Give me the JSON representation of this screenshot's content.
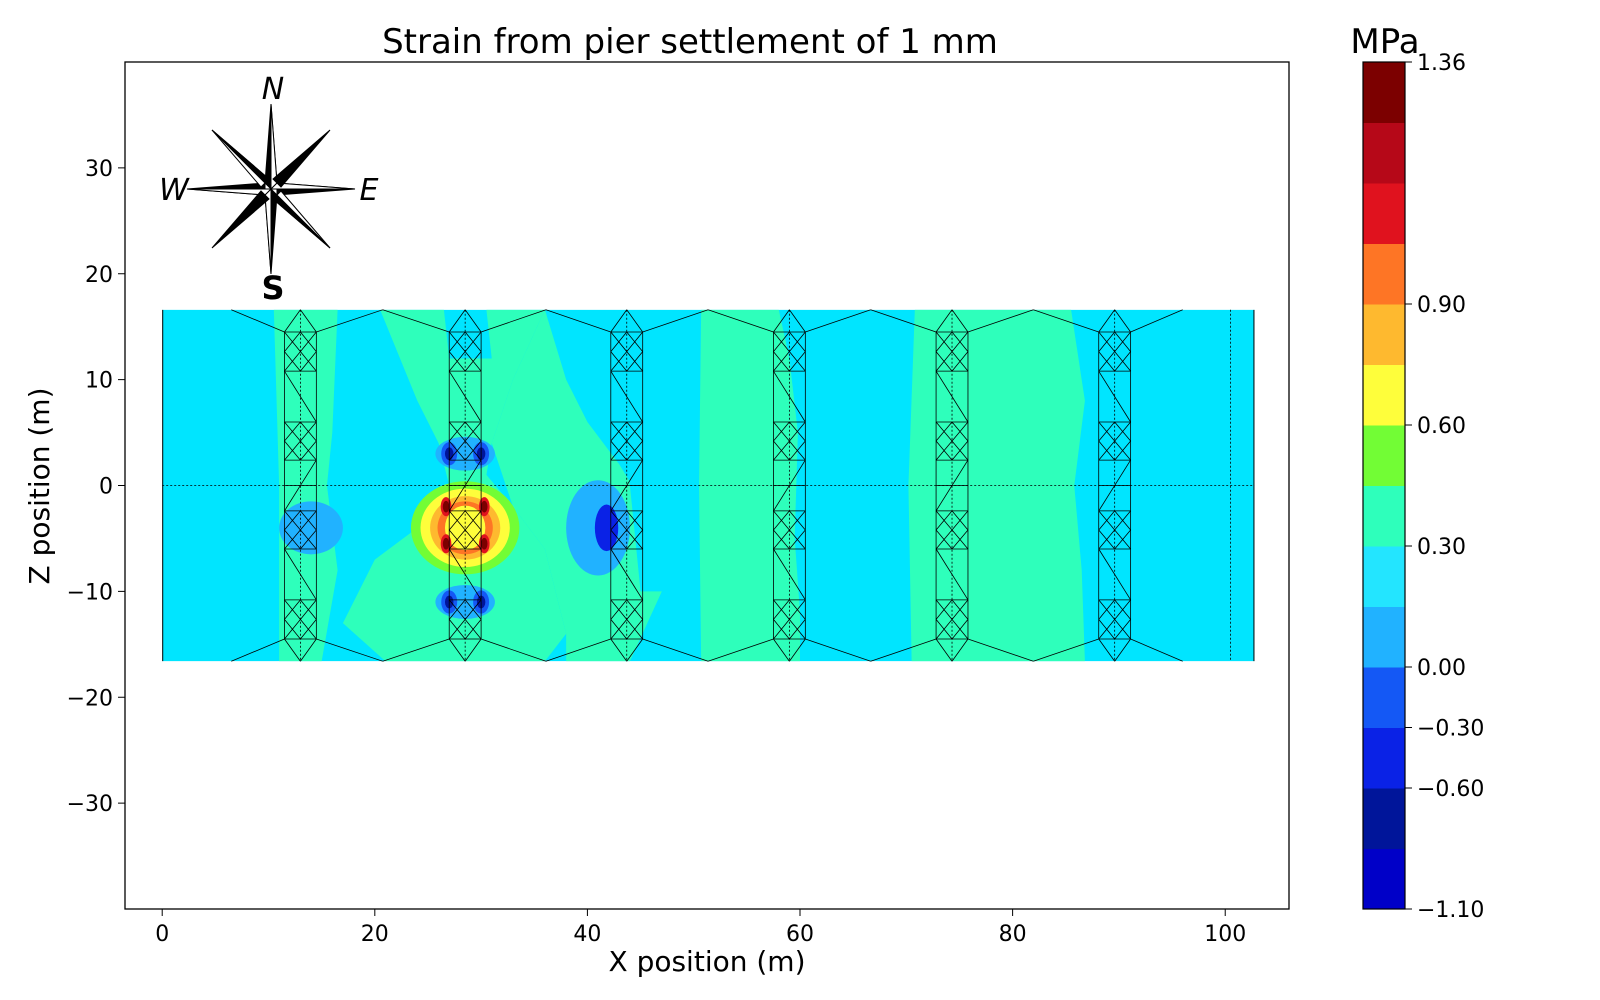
{
  "chart_data": {
    "type": "heatmap",
    "title": "Strain from pier settlement of 1 mm",
    "xlabel": "X position (m)",
    "ylabel": "Z position (m)",
    "xlim": [
      -3.5,
      106
    ],
    "ylim": [
      -40,
      40
    ],
    "x_ticks": [
      0,
      20,
      40,
      60,
      80,
      100
    ],
    "y_ticks": [
      -30,
      -20,
      -10,
      0,
      10,
      20,
      30
    ],
    "x_tick_labels": [
      "0",
      "20",
      "40",
      "60",
      "80",
      "100"
    ],
    "y_tick_labels": [
      "−30",
      "−20",
      "−10",
      "0",
      "10",
      "20",
      "30"
    ],
    "deck": {
      "x_range": [
        0,
        102.75
      ],
      "z_range": [
        -16.6,
        16.6
      ]
    },
    "pier_x": [
      13,
      28.5,
      43.7,
      59,
      74.3,
      89.6
    ],
    "colorbar": {
      "unit_label": "MPa",
      "min": -1.1,
      "max": 1.36,
      "tick_values": [
        -1.1,
        -0.6,
        -0.3,
        0.0,
        0.3,
        0.6,
        0.9,
        1.36
      ],
      "tick_labels": [
        "−1.10",
        "−0.60",
        "−0.30",
        "0.00",
        "0.30",
        "0.60",
        "0.90",
        "1.36"
      ],
      "band_colors": [
        "#0000c8",
        "#00159a",
        "#0a22e6",
        "#1458f5",
        "#21b2ff",
        "#23e5ff",
        "#2effbb",
        "#72fd35",
        "#fefe3b",
        "#feb92f",
        "#fe7525",
        "#e0121e",
        "#b60818",
        "#7c0000"
      ]
    },
    "compass": {
      "north": "N",
      "south": "S",
      "east": "E",
      "west": "W"
    },
    "colors": {
      "base_field": "#00e5ff",
      "positive_band": "#2effbb",
      "negative_band": "#21b2ff",
      "frame": "#000000"
    }
  }
}
